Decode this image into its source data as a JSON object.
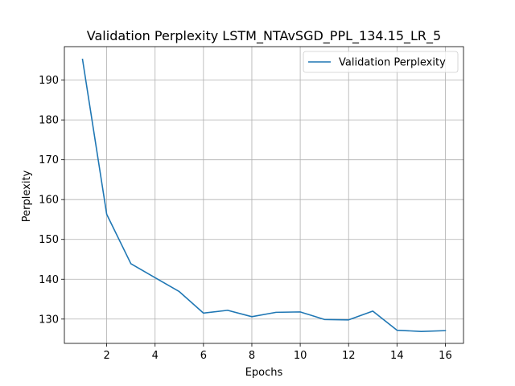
{
  "chart_data": {
    "type": "line",
    "title": "Validation Perplexity LSTM_NTAvSGD_PPL_134.15_LR_5",
    "xlabel": "Epochs",
    "ylabel": "Perplexity",
    "xlim": [
      0.25,
      16.75
    ],
    "ylim": [
      123.9,
      198.4
    ],
    "xticks": [
      2,
      4,
      6,
      8,
      10,
      12,
      14,
      16
    ],
    "yticks": [
      130,
      140,
      150,
      160,
      170,
      180,
      190
    ],
    "grid": true,
    "legend_position": "top-right",
    "series": [
      {
        "name": "Validation Perplexity",
        "color": "#1f77b4",
        "x": [
          1,
          2,
          3,
          4,
          5,
          6,
          7,
          8,
          9,
          10,
          11,
          12,
          13,
          14,
          15,
          16
        ],
        "y": [
          195.2,
          156.3,
          143.9,
          140.4,
          136.9,
          131.5,
          132.2,
          130.6,
          131.7,
          131.8,
          129.9,
          129.8,
          132.0,
          127.2,
          126.9,
          127.1
        ]
      }
    ]
  }
}
